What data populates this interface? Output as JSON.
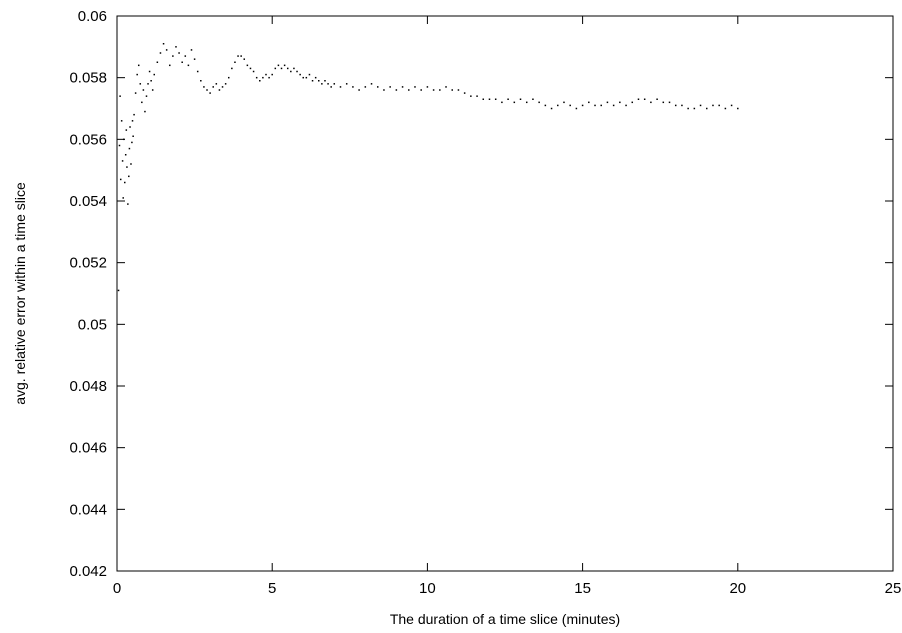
{
  "chart_data": {
    "type": "scatter",
    "title": "",
    "xlabel": "The duration of a time slice (minutes)",
    "ylabel": "avg. relative error within a time slice",
    "xlim": [
      0,
      25
    ],
    "ylim": [
      0.042,
      0.06
    ],
    "x_ticks": [
      "0",
      "5",
      "10",
      "15",
      "20",
      "25"
    ],
    "y_ticks": [
      "0.042",
      "0.044",
      "0.046",
      "0.048",
      "0.05",
      "0.052",
      "0.054",
      "0.056",
      "0.058",
      "0.06"
    ],
    "grid": false,
    "legend": "none",
    "series_color": "#000000",
    "series": [
      {
        "points": [
          [
            0.05,
            0.0511
          ],
          [
            0.08,
            0.0558
          ],
          [
            0.1,
            0.0574
          ],
          [
            0.12,
            0.0547
          ],
          [
            0.15,
            0.0566
          ],
          [
            0.18,
            0.0553
          ],
          [
            0.2,
            0.0541
          ],
          [
            0.22,
            0.056
          ],
          [
            0.25,
            0.0546
          ],
          [
            0.28,
            0.0555
          ],
          [
            0.3,
            0.0563
          ],
          [
            0.32,
            0.0551
          ],
          [
            0.35,
            0.0539
          ],
          [
            0.38,
            0.0548
          ],
          [
            0.4,
            0.0557
          ],
          [
            0.42,
            0.0564
          ],
          [
            0.45,
            0.0552
          ],
          [
            0.48,
            0.0559
          ],
          [
            0.5,
            0.0566
          ],
          [
            0.52,
            0.0561
          ],
          [
            0.55,
            0.0568
          ],
          [
            0.6,
            0.0575
          ],
          [
            0.65,
            0.0581
          ],
          [
            0.7,
            0.0584
          ],
          [
            0.75,
            0.0578
          ],
          [
            0.8,
            0.0572
          ],
          [
            0.85,
            0.0576
          ],
          [
            0.9,
            0.0569
          ],
          [
            0.95,
            0.0574
          ],
          [
            1.0,
            0.0578
          ],
          [
            1.05,
            0.0582
          ],
          [
            1.1,
            0.0579
          ],
          [
            1.15,
            0.0576
          ],
          [
            1.2,
            0.0581
          ],
          [
            1.3,
            0.0585
          ],
          [
            1.4,
            0.0588
          ],
          [
            1.5,
            0.0591
          ],
          [
            1.6,
            0.0589
          ],
          [
            1.7,
            0.0584
          ],
          [
            1.8,
            0.0587
          ],
          [
            1.9,
            0.059
          ],
          [
            2.0,
            0.0588
          ],
          [
            2.1,
            0.0585
          ],
          [
            2.2,
            0.0587
          ],
          [
            2.3,
            0.0584
          ],
          [
            2.4,
            0.0589
          ],
          [
            2.5,
            0.0586
          ],
          [
            2.6,
            0.0582
          ],
          [
            2.7,
            0.0579
          ],
          [
            2.8,
            0.0577
          ],
          [
            2.9,
            0.0576
          ],
          [
            3.0,
            0.0575
          ],
          [
            3.1,
            0.0577
          ],
          [
            3.2,
            0.0578
          ],
          [
            3.3,
            0.0576
          ],
          [
            3.4,
            0.0577
          ],
          [
            3.5,
            0.0578
          ],
          [
            3.6,
            0.058
          ],
          [
            3.7,
            0.0583
          ],
          [
            3.8,
            0.0585
          ],
          [
            3.9,
            0.0587
          ],
          [
            4.0,
            0.0587
          ],
          [
            4.1,
            0.0586
          ],
          [
            4.2,
            0.0584
          ],
          [
            4.3,
            0.0583
          ],
          [
            4.4,
            0.0582
          ],
          [
            4.5,
            0.058
          ],
          [
            4.6,
            0.0579
          ],
          [
            4.7,
            0.058
          ],
          [
            4.8,
            0.0581
          ],
          [
            4.9,
            0.058
          ],
          [
            5.0,
            0.0581
          ],
          [
            5.1,
            0.0583
          ],
          [
            5.2,
            0.0584
          ],
          [
            5.3,
            0.0583
          ],
          [
            5.4,
            0.0584
          ],
          [
            5.5,
            0.0583
          ],
          [
            5.6,
            0.0582
          ],
          [
            5.7,
            0.0583
          ],
          [
            5.8,
            0.0582
          ],
          [
            5.9,
            0.0581
          ],
          [
            6.0,
            0.058
          ],
          [
            6.1,
            0.058
          ],
          [
            6.2,
            0.0581
          ],
          [
            6.3,
            0.0579
          ],
          [
            6.4,
            0.058
          ],
          [
            6.5,
            0.0579
          ],
          [
            6.6,
            0.0578
          ],
          [
            6.7,
            0.0579
          ],
          [
            6.8,
            0.0578
          ],
          [
            6.9,
            0.0577
          ],
          [
            7.0,
            0.0578
          ],
          [
            7.2,
            0.0577
          ],
          [
            7.4,
            0.0578
          ],
          [
            7.6,
            0.0577
          ],
          [
            7.8,
            0.0576
          ],
          [
            8.0,
            0.0577
          ],
          [
            8.2,
            0.0578
          ],
          [
            8.4,
            0.0577
          ],
          [
            8.6,
            0.0576
          ],
          [
            8.8,
            0.0577
          ],
          [
            9.0,
            0.0576
          ],
          [
            9.2,
            0.0577
          ],
          [
            9.4,
            0.0576
          ],
          [
            9.6,
            0.0577
          ],
          [
            9.8,
            0.0576
          ],
          [
            10.0,
            0.0577
          ],
          [
            10.2,
            0.0576
          ],
          [
            10.4,
            0.0576
          ],
          [
            10.6,
            0.0577
          ],
          [
            10.8,
            0.0576
          ],
          [
            11.0,
            0.0576
          ],
          [
            11.2,
            0.0575
          ],
          [
            11.4,
            0.0574
          ],
          [
            11.6,
            0.0574
          ],
          [
            11.8,
            0.0573
          ],
          [
            12.0,
            0.0573
          ],
          [
            12.2,
            0.0573
          ],
          [
            12.4,
            0.0572
          ],
          [
            12.6,
            0.0573
          ],
          [
            12.8,
            0.0572
          ],
          [
            13.0,
            0.0573
          ],
          [
            13.2,
            0.0572
          ],
          [
            13.4,
            0.0573
          ],
          [
            13.6,
            0.0572
          ],
          [
            13.8,
            0.0571
          ],
          [
            14.0,
            0.057
          ],
          [
            14.2,
            0.0571
          ],
          [
            14.4,
            0.0572
          ],
          [
            14.6,
            0.0571
          ],
          [
            14.8,
            0.057
          ],
          [
            15.0,
            0.0571
          ],
          [
            15.2,
            0.0572
          ],
          [
            15.4,
            0.0571
          ],
          [
            15.6,
            0.0571
          ],
          [
            15.8,
            0.0572
          ],
          [
            16.0,
            0.0571
          ],
          [
            16.2,
            0.0572
          ],
          [
            16.4,
            0.0571
          ],
          [
            16.6,
            0.0572
          ],
          [
            16.8,
            0.0573
          ],
          [
            17.0,
            0.0573
          ],
          [
            17.2,
            0.0572
          ],
          [
            17.4,
            0.0573
          ],
          [
            17.6,
            0.0572
          ],
          [
            17.8,
            0.0572
          ],
          [
            18.0,
            0.0571
          ],
          [
            18.2,
            0.0571
          ],
          [
            18.4,
            0.057
          ],
          [
            18.6,
            0.057
          ],
          [
            18.8,
            0.0571
          ],
          [
            19.0,
            0.057
          ],
          [
            19.2,
            0.0571
          ],
          [
            19.4,
            0.0571
          ],
          [
            19.6,
            0.057
          ],
          [
            19.8,
            0.0571
          ],
          [
            20.0,
            0.057
          ]
        ]
      }
    ]
  }
}
